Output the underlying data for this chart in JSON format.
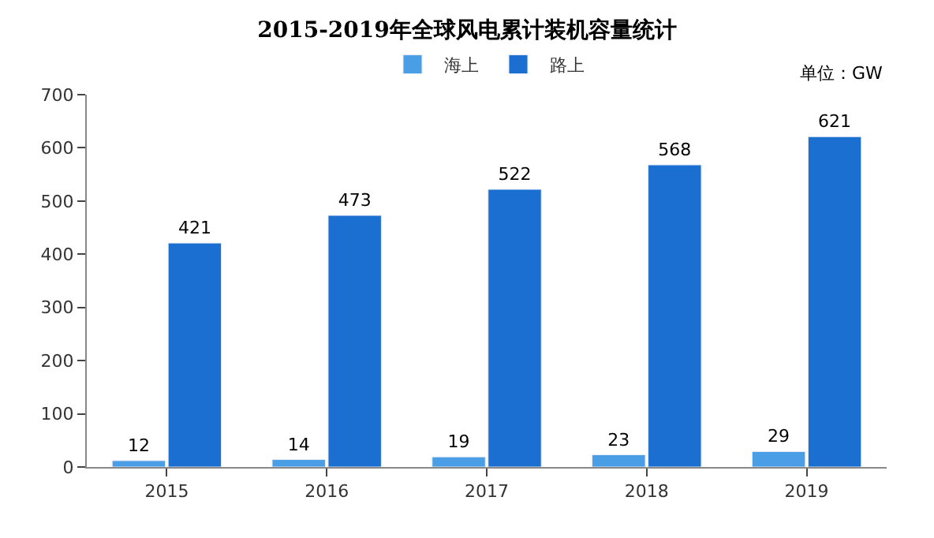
{
  "chart_data": {
    "type": "bar",
    "title": "2015-2019年全球风电累计装机容量统计",
    "categories": [
      "2015",
      "2016",
      "2017",
      "2018",
      "2019"
    ],
    "series": [
      {
        "name": "海上",
        "color": "#4a9ee6",
        "values": [
          12,
          14,
          19,
          23,
          29
        ]
      },
      {
        "name": "路上",
        "color": "#1a6fd0",
        "values": [
          421,
          473,
          522,
          568,
          621
        ]
      }
    ],
    "ylim": [
      0,
      700
    ],
    "yticks": [
      0,
      100,
      200,
      300,
      400,
      500,
      600,
      700
    ],
    "legend": "top",
    "data_labels": true,
    "annotations": [
      "单位：GW"
    ]
  }
}
